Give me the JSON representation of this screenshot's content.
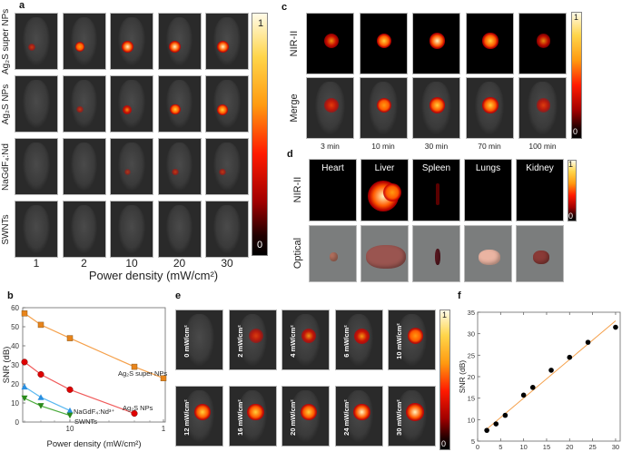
{
  "panels": {
    "a": {
      "label": "a",
      "row_labels": [
        "Ag₂S super NPs",
        "Ag₂S NPs",
        "NaGdF₄:Nd",
        "SWNTs"
      ],
      "col_labels": [
        "1",
        "2",
        "10",
        "20",
        "30"
      ],
      "xlabel": "Power density (mW/cm²)",
      "intensity": [
        [
          0.25,
          0.55,
          0.85,
          0.9,
          0.9
        ],
        [
          0.0,
          0.2,
          0.5,
          0.7,
          0.75
        ],
        [
          0.0,
          0.0,
          0.1,
          0.2,
          0.2
        ],
        [
          0.0,
          0.0,
          0.0,
          0.0,
          0.0
        ]
      ],
      "colorbar": {
        "max": "1",
        "min": "0"
      }
    },
    "c": {
      "label": "c",
      "row_labels": [
        "NIR-II",
        "Merge"
      ],
      "col_labels": [
        "3 min",
        "10 min",
        "30 min",
        "70 min",
        "100 min"
      ],
      "intensity": [
        0.5,
        0.7,
        0.9,
        0.8,
        0.45
      ],
      "colorbar": {
        "max": "1",
        "min": "0"
      }
    },
    "d": {
      "label": "d",
      "row_labels": [
        "NIR-II",
        "Optical"
      ],
      "organs": [
        "Heart",
        "Liver",
        "Spleen",
        "Lungs",
        "Kidney"
      ],
      "nir_intensity": [
        0.0,
        1.0,
        0.15,
        0.0,
        0.0
      ],
      "colorbar": {
        "max": "1",
        "min": "0"
      }
    },
    "e": {
      "label": "e",
      "tiles": [
        {
          "label": "0 mW/cm²",
          "intensity": 0.0
        },
        {
          "label": "2 mW/cm²",
          "intensity": 0.35
        },
        {
          "label": "4 mW/cm²",
          "intensity": 0.45
        },
        {
          "label": "6 mW/cm²",
          "intensity": 0.5
        },
        {
          "label": "10 mW/cm²",
          "intensity": 0.55
        },
        {
          "label": "12 mW/cm²",
          "intensity": 0.65
        },
        {
          "label": "16 mW/cm²",
          "intensity": 0.72
        },
        {
          "label": "20 mW/cm²",
          "intensity": 0.75
        },
        {
          "label": "24 mW/cm²",
          "intensity": 0.82
        },
        {
          "label": "30 mW/cm²",
          "intensity": 0.9
        }
      ],
      "colorbar": {
        "max": "1",
        "min": "0"
      }
    },
    "b": {
      "label": "b"
    },
    "f": {
      "label": "f"
    }
  },
  "chart_data": [
    {
      "id": "b",
      "type": "line",
      "title": "",
      "xlabel": "Power density (mW/cm²)",
      "ylabel": "SNR (dB)",
      "ylim": [
        0,
        60
      ],
      "yticks": [
        "0",
        "10",
        "20",
        "30",
        "40",
        "50",
        "60"
      ],
      "xtick_labels": [
        {
          "label": "10",
          "pos": 3
        },
        {
          "label": "1",
          "pos": 5
        }
      ],
      "x_positions": [
        1,
        2,
        3,
        4,
        5
      ],
      "grid": false,
      "series": [
        {
          "name": "Ag₂S super NPs",
          "color": "#f5a04a",
          "marker": "square",
          "marker_color": "#e8841a",
          "x": [
            1,
            2,
            3,
            4,
            5
          ],
          "values": [
            57,
            51,
            44,
            29,
            23
          ]
        },
        {
          "name": "Ag₂S NPs",
          "color": "#f05a5a",
          "marker": "circle",
          "marker_color": "#e00000",
          "x": [
            1,
            2,
            3,
            4
          ],
          "values": [
            31.5,
            25,
            17,
            4.5
          ]
        },
        {
          "name": "NaGdF₄:Nd³⁺",
          "color": "#5ab8f0",
          "marker": "triangle-up",
          "marker_color": "#2a8fe0",
          "x": [
            1,
            2,
            3
          ],
          "values": [
            18.5,
            13,
            6
          ]
        },
        {
          "name": "SWNTs",
          "color": "#4aaa3a",
          "marker": "triangle-down",
          "marker_color": "#2a8a1a",
          "x": [
            1,
            2,
            3
          ],
          "values": [
            12.5,
            8.5,
            3.5
          ]
        }
      ]
    },
    {
      "id": "f",
      "type": "scatter",
      "title": "",
      "xlabel": "Power density (mW/cm²)",
      "ylabel": "SNR (dB)",
      "xlim": [
        0,
        31
      ],
      "ylim": [
        5,
        35
      ],
      "xticks": [
        0,
        5,
        10,
        15,
        20,
        25,
        30
      ],
      "yticks": [
        5,
        10,
        15,
        20,
        25,
        30,
        35
      ],
      "grid": false,
      "series": [
        {
          "name": "data",
          "x": [
            2,
            4,
            6,
            10,
            12,
            16,
            20,
            24,
            30
          ],
          "values": [
            7.5,
            9,
            11,
            15.7,
            17.5,
            21.5,
            24.5,
            28,
            31.5
          ],
          "color": "#000000"
        }
      ],
      "fit": {
        "x": [
          2,
          30
        ],
        "values": [
          7.8,
          33
        ],
        "color": "#f5a04a"
      }
    }
  ]
}
